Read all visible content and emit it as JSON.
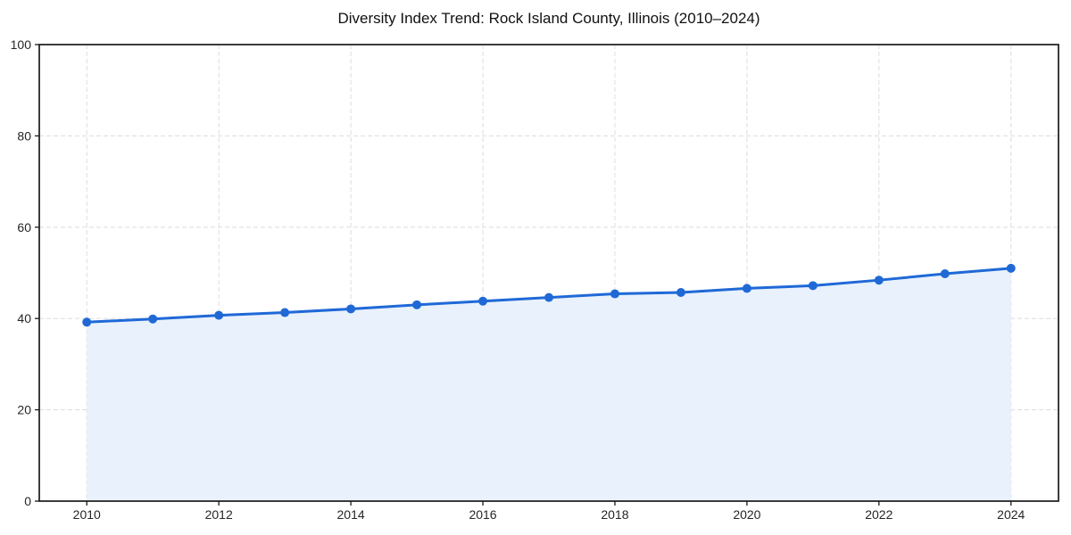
{
  "page": {
    "background": "#ffffff"
  },
  "chart_data": {
    "type": "line",
    "title": "Diversity Index Trend: Rock Island County, Illinois (2010–2024)",
    "x": [
      2010,
      2011,
      2012,
      2013,
      2014,
      2015,
      2016,
      2017,
      2018,
      2019,
      2020,
      2021,
      2022,
      2023,
      2024
    ],
    "series": [
      {
        "name": "Diversity Index",
        "values": [
          39.2,
          39.9,
          40.7,
          41.3,
          42.1,
          43.0,
          43.8,
          44.6,
          45.4,
          45.7,
          46.6,
          47.2,
          48.4,
          49.8,
          51.0
        ]
      }
    ],
    "xlabel": "",
    "ylabel": "",
    "xlim": [
      2009.28,
      2024.72
    ],
    "ylim": [
      0,
      100
    ],
    "xticks": [
      2010,
      2012,
      2014,
      2016,
      2018,
      2020,
      2022,
      2024
    ],
    "yticks": [
      0,
      20,
      40,
      60,
      80,
      100
    ],
    "grid": true,
    "grid_line_style": "dashed",
    "legend_position": "none",
    "area_fill": true,
    "marker": "circle",
    "colors": {
      "line": "#1f69d7",
      "marker": "#1f69d7",
      "area_fill": "#e9f1fc",
      "grid": "#e0e0e0",
      "axis": "#1a1a1a",
      "tick_label": "#262626",
      "title": "#111111",
      "background": "#ffffff"
    }
  }
}
